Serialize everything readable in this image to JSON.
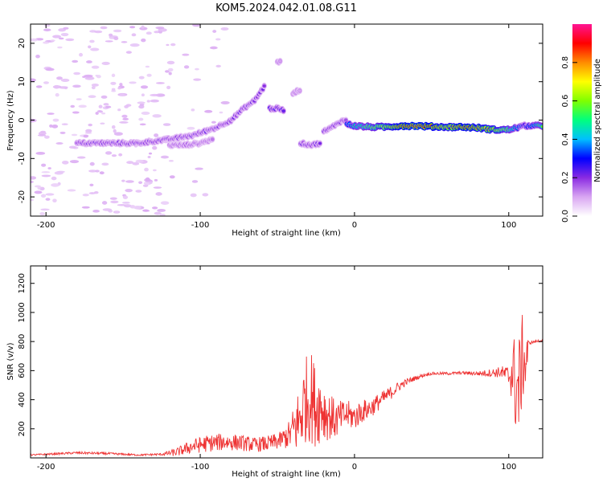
{
  "title": "KOM5.2024.042.01.08.G11",
  "chart_data": [
    {
      "type": "heatmap",
      "xlabel": "Height of straight line (km)",
      "ylabel": "Frequency (Hz)",
      "xlim": [
        -210,
        122
      ],
      "ylim": [
        -25,
        25
      ],
      "x_ticks": [
        -200,
        -100,
        0,
        100
      ],
      "y_ticks": [
        -20,
        -10,
        0,
        10,
        20
      ],
      "colorbar": {
        "label": "Normalized spectral amplitude",
        "range": [
          0,
          1
        ],
        "ticks": [
          0.0,
          0.2,
          0.4,
          0.6,
          0.8
        ],
        "colormap": [
          "#ffffff",
          "#d9a6f2",
          "#8a2be2",
          "#0000ff",
          "#00bfff",
          "#00ff7f",
          "#7fff00",
          "#ffff00",
          "#ff8c00",
          "#ff0000",
          "#ff1493"
        ]
      },
      "traces": [
        {
          "x": [
            -180,
            -160,
            -140,
            -120,
            -105,
            -90,
            -80,
            -72,
            -65,
            -58
          ],
          "y": [
            -6,
            -6,
            -6,
            -5,
            -4,
            -2,
            0,
            3,
            5,
            9
          ],
          "amplitude": 0.2
        },
        {
          "x": [
            -120,
            -110,
            -100,
            -92
          ],
          "y": [
            -6.5,
            -6.5,
            -6,
            -5
          ],
          "amplitude": 0.15
        },
        {
          "x": [
            -55,
            -50,
            -46
          ],
          "y": [
            3,
            3,
            2.5
          ],
          "amplitude": 0.25
        },
        {
          "x": [
            -40,
            -35
          ],
          "y": [
            7,
            8
          ],
          "amplitude": 0.1
        },
        {
          "x": [
            -50,
            -48
          ],
          "y": [
            15,
            15.5
          ],
          "amplitude": 0.1
        },
        {
          "x": [
            -35,
            -28,
            -22
          ],
          "y": [
            -6,
            -6.5,
            -6
          ],
          "amplitude": 0.2
        },
        {
          "x": [
            -20,
            -15,
            -10,
            -5
          ],
          "y": [
            -3,
            -2,
            -0.5,
            0
          ],
          "amplitude": 0.2
        },
        {
          "x": [
            -5,
            0,
            10,
            20,
            30,
            40,
            50,
            60,
            70,
            80,
            90,
            100,
            110,
            122
          ],
          "y": [
            -1,
            -1.5,
            -1.8,
            -1.8,
            -1.5,
            -1.5,
            -1.7,
            -1.8,
            -1.8,
            -2,
            -2.5,
            -2.5,
            -1.5,
            -1.5
          ],
          "amplitude": [
            0.4,
            0.5,
            0.6,
            0.7,
            0.85,
            0.9,
            0.85,
            0.75,
            0.85,
            0.8,
            0.75,
            0.6,
            0.3,
            0.6
          ]
        }
      ],
      "scatter_x_range": [
        -210,
        -80
      ],
      "scatter_amplitude": 0.05
    },
    {
      "type": "line",
      "xlabel": "Height of straight line (km)",
      "ylabel": "SNR (v/v)",
      "xlim": [
        -210,
        122
      ],
      "ylim": [
        0,
        1320
      ],
      "x_ticks": [
        -200,
        -100,
        0,
        100
      ],
      "y_ticks": [
        200,
        400,
        600,
        800,
        1000,
        1200
      ],
      "color": "#ee3333",
      "envelope": {
        "x": [
          -210,
          -200,
          -180,
          -160,
          -140,
          -125,
          -115,
          -105,
          -95,
          -85,
          -75,
          -65,
          -55,
          -48,
          -42,
          -36,
          -32,
          -28,
          -25,
          -22,
          -18,
          -12,
          -5,
          0,
          5,
          10,
          15,
          20,
          25,
          30,
          35,
          40,
          45,
          50,
          60,
          70,
          80,
          90,
          95,
          100,
          103,
          105,
          107,
          109,
          111,
          113,
          122
        ],
        "y": [
          20,
          25,
          35,
          30,
          20,
          25,
          40,
          80,
          100,
          110,
          105,
          90,
          100,
          120,
          160,
          250,
          400,
          420,
          350,
          360,
          300,
          260,
          300,
          280,
          320,
          340,
          380,
          420,
          460,
          500,
          530,
          550,
          570,
          580,
          580,
          585,
          580,
          585,
          590,
          560,
          600,
          450,
          500,
          700,
          640,
          790,
          810
        ],
        "noise_amplitude": [
          5,
          6,
          8,
          8,
          6,
          8,
          30,
          50,
          60,
          60,
          55,
          50,
          55,
          60,
          100,
          250,
          300,
          320,
          280,
          250,
          180,
          130,
          100,
          90,
          80,
          70,
          60,
          50,
          45,
          30,
          20,
          15,
          12,
          10,
          10,
          10,
          15,
          30,
          40,
          80,
          250,
          380,
          360,
          300,
          250,
          10,
          10
        ]
      }
    }
  ]
}
